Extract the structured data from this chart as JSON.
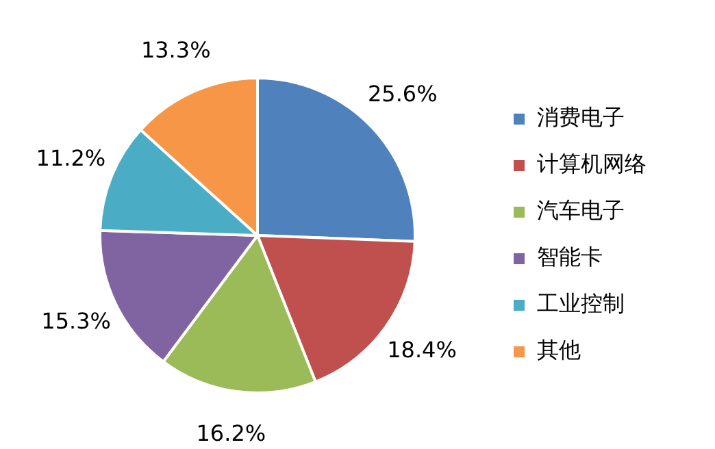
{
  "chart_data": {
    "type": "pie",
    "categories": [
      "消费电子",
      "计算机网络",
      "汽车电子",
      "智能卡",
      "工业控制",
      "其他"
    ],
    "values": [
      25.6,
      18.4,
      16.2,
      15.3,
      11.2,
      13.3
    ],
    "colors": [
      "#4f81bd",
      "#c0504d",
      "#9bbb59",
      "#8064a2",
      "#4bacc6",
      "#f79646"
    ],
    "value_labels": [
      "25.6%",
      "18.4%",
      "16.2%",
      "15.3%",
      "11.2%",
      "13.3%"
    ],
    "legend": "right"
  }
}
